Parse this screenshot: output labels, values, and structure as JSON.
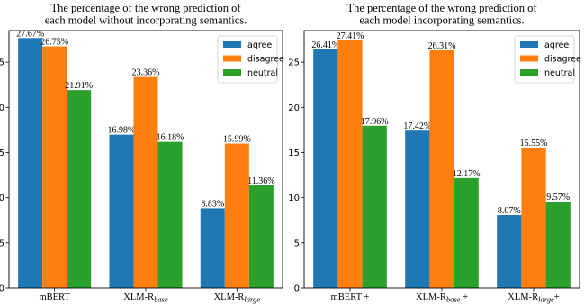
{
  "chart_data": [
    {
      "type": "bar",
      "title_lines": [
        "The percentage of the wrong prediction of",
        "each model without incorporating semantics."
      ],
      "categories": [
        "mBERT",
        "XLM-R_base",
        "XLM-R_large"
      ],
      "category_display": [
        {
          "base": "mBERT",
          "sub": ""
        },
        {
          "base": "XLM-R",
          "sub": "base"
        },
        {
          "base": "XLM-R",
          "sub": "large"
        }
      ],
      "series": [
        {
          "name": "agree",
          "color": "#1f77b4",
          "values": [
            27.67,
            16.98,
            8.83
          ],
          "labels": [
            "27.67%",
            "16.98%",
            "8.83%"
          ]
        },
        {
          "name": "disagree",
          "color": "#ff7f0e",
          "values": [
            26.75,
            23.36,
            15.99
          ],
          "labels": [
            "26.75%",
            "23.36%",
            "15.99%"
          ]
        },
        {
          "name": "neutral",
          "color": "#2ca02c",
          "values": [
            21.91,
            16.18,
            11.36
          ],
          "labels": [
            "21.91%",
            "16.18%",
            "11.36%"
          ]
        }
      ],
      "ylim": [
        0,
        28.5
      ],
      "yticks": [
        0,
        5,
        10,
        15,
        20,
        25
      ],
      "legend_position": "top-right"
    },
    {
      "type": "bar",
      "title_lines": [
        "The percentage of the wrong prediction of",
        "each model incorporating semantics."
      ],
      "categories": [
        "mBERT +",
        "XLM-R_base +",
        "XLM-R_large+"
      ],
      "category_display": [
        {
          "base": "mBERT +",
          "sub": ""
        },
        {
          "base": "XLM-R",
          "sub": "base",
          "suffix": " +"
        },
        {
          "base": "XLM-R",
          "sub": "large",
          "suffix": "+"
        }
      ],
      "series": [
        {
          "name": "agree",
          "color": "#1f77b4",
          "values": [
            26.41,
            17.42,
            8.07
          ],
          "labels": [
            "26.41%",
            "17.42%",
            "8.07%"
          ]
        },
        {
          "name": "disagree",
          "color": "#ff7f0e",
          "values": [
            27.41,
            26.31,
            15.55
          ],
          "labels": [
            "27.41%",
            "26.31%",
            "15.55%"
          ]
        },
        {
          "name": "neutral",
          "color": "#2ca02c",
          "values": [
            17.96,
            12.17,
            9.57
          ],
          "labels": [
            "17.96%",
            "12.17%",
            "9.57%"
          ]
        }
      ],
      "ylim": [
        0,
        28.5
      ],
      "yticks": [
        0,
        5,
        10,
        15,
        20,
        25
      ],
      "legend_position": "top-right"
    }
  ]
}
